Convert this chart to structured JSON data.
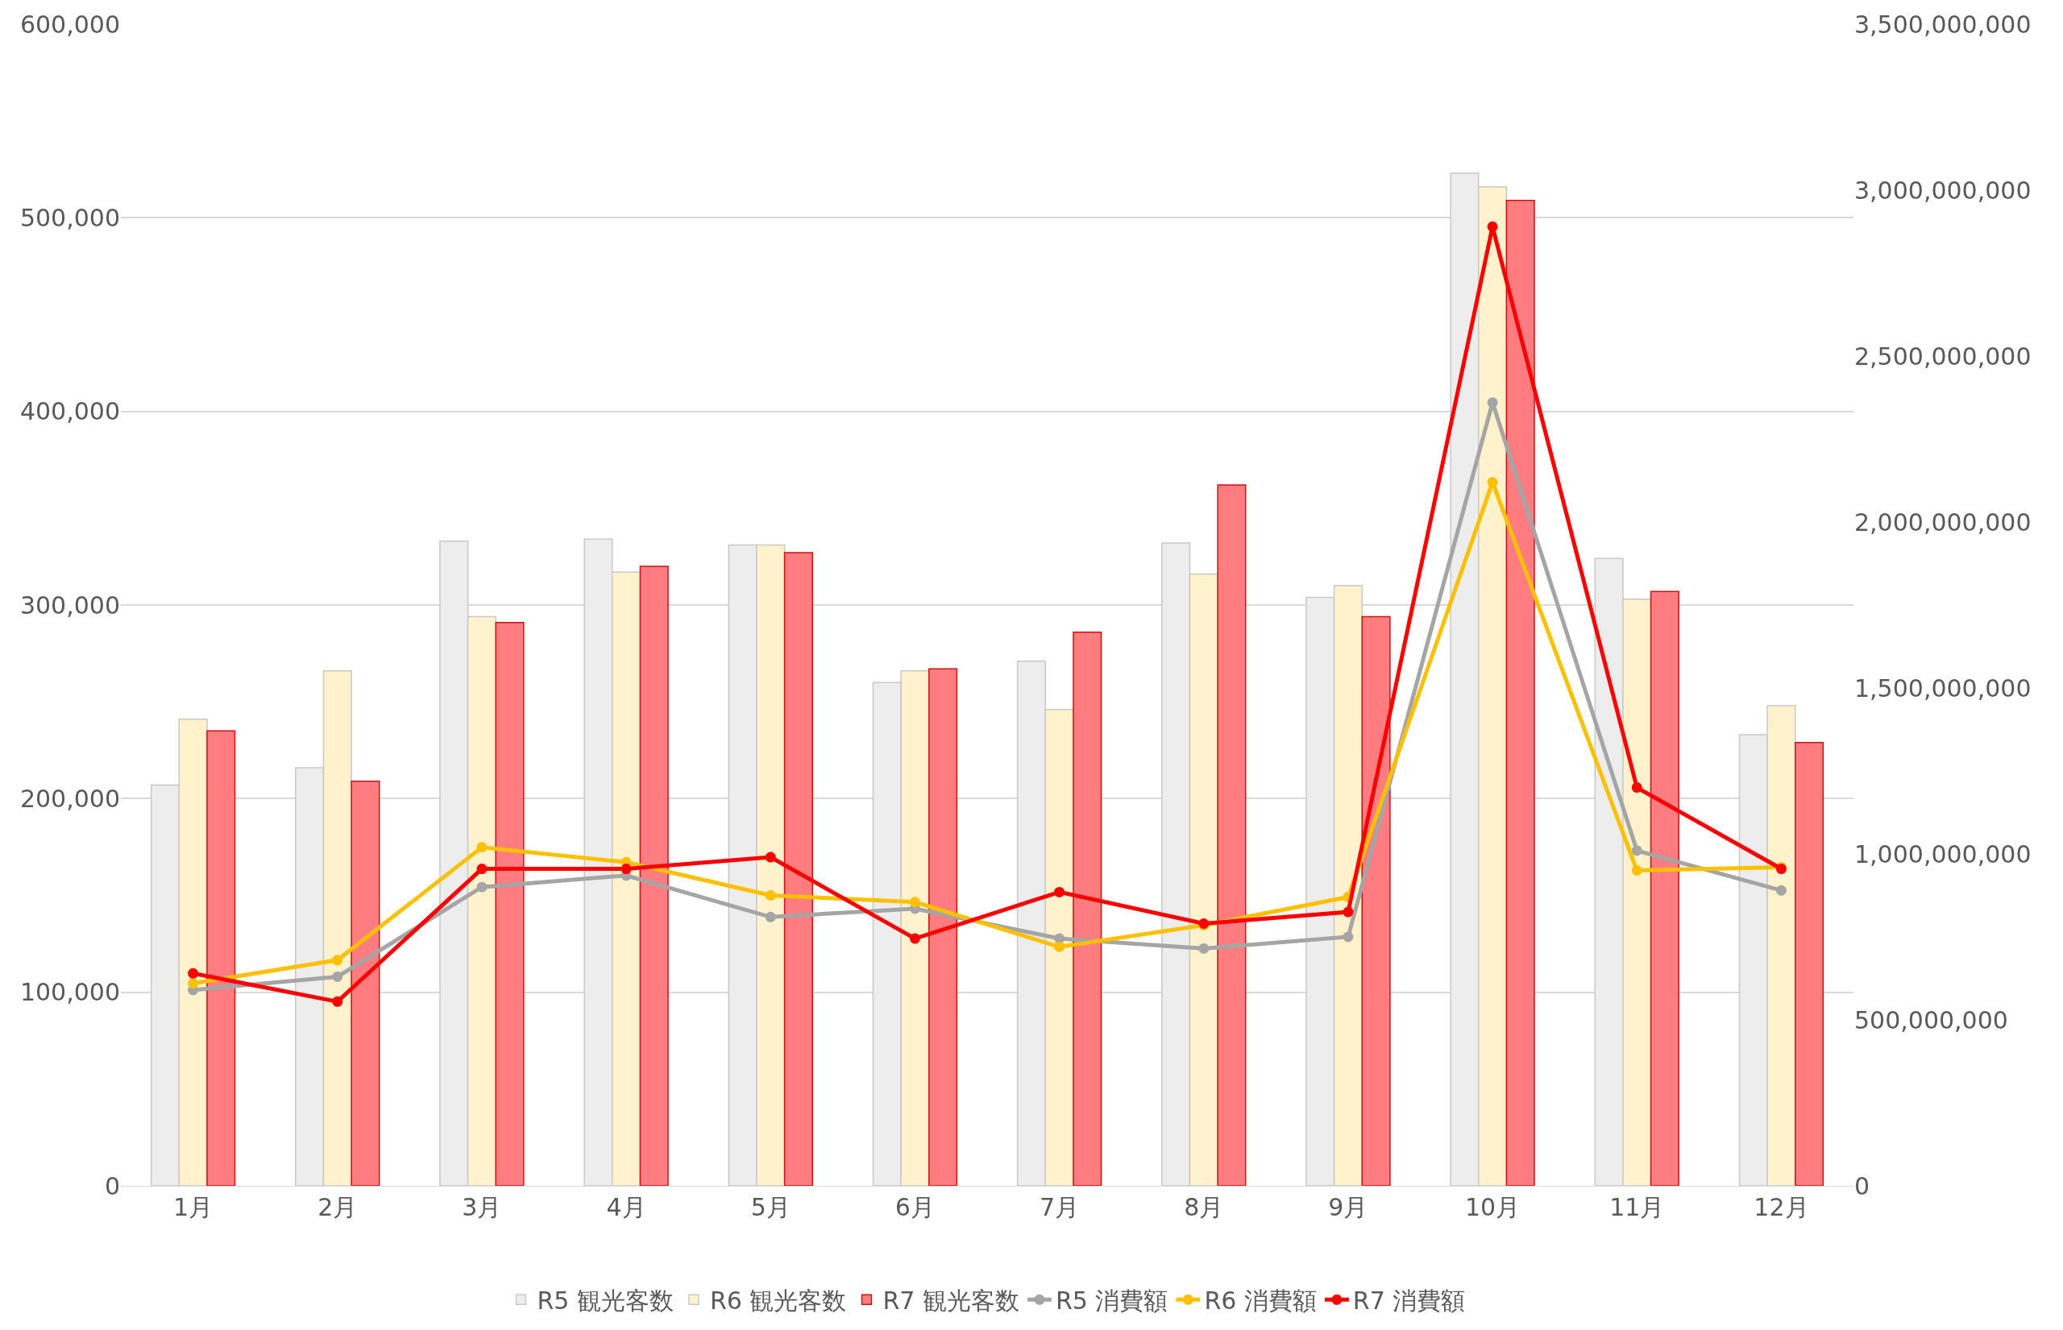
{
  "chart_data": {
    "type": "bar",
    "categories": [
      "1月",
      "2月",
      "3月",
      "4月",
      "5月",
      "6月",
      "7月",
      "8月",
      "9月",
      "10月",
      "11月",
      "12月"
    ],
    "series": [
      {
        "name": "R5 観光客数",
        "color": "#ededed",
        "values": [
          207000,
          216000,
          333000,
          334000,
          331000,
          260000,
          271000,
          332000,
          304000,
          523000,
          324000,
          233000
        ]
      },
      {
        "name": "R6 観光客数",
        "color": "#fff2cc",
        "values": [
          241000,
          266000,
          294000,
          317000,
          331000,
          266000,
          246000,
          316000,
          310000,
          516000,
          303000,
          248000
        ]
      },
      {
        "name": "R7 観光客数",
        "color": "#ff7c80",
        "values": [
          235000,
          209000,
          291000,
          320000,
          327000,
          267000,
          286000,
          362000,
          294000,
          509000,
          307000,
          229000
        ]
      },
      {
        "name": "R5 消費額",
        "type": "line",
        "axis": "y2",
        "color": "#a5a5a5",
        "values": [
          590000000,
          630000000,
          900000000,
          935000000,
          810000000,
          835000000,
          745000000,
          715000000,
          750000000,
          2360000000,
          1010000000,
          890000000
        ]
      },
      {
        "name": "R6 消費額",
        "type": "line",
        "axis": "y2",
        "color": "#ffc000",
        "values": [
          610000000,
          680000000,
          1020000000,
          975000000,
          875000000,
          855000000,
          720000000,
          785000000,
          870000000,
          2120000000,
          950000000,
          960000000
        ]
      },
      {
        "name": "R7 消費額",
        "type": "line",
        "axis": "y2",
        "color": "#ff0000",
        "values": [
          640000000,
          555000000,
          955000000,
          955000000,
          990000000,
          745000000,
          885000000,
          790000000,
          825000000,
          2890000000,
          1200000000,
          955000000
        ]
      }
    ],
    "ylim": [
      0,
      600000
    ],
    "yticks": [
      {
        "value": 0,
        "label": "0"
      },
      {
        "value": 100000,
        "label": "100,000"
      },
      {
        "value": 200000,
        "label": "200,000"
      },
      {
        "value": 300000,
        "label": "300,000"
      },
      {
        "value": 400000,
        "label": "400,000"
      },
      {
        "value": 500000,
        "label": "500,000"
      },
      {
        "value": 600000,
        "label": "600,000"
      }
    ],
    "y2lim": [
      0,
      3500000000
    ],
    "y2ticks": [
      {
        "value": 0,
        "label": "0"
      },
      {
        "value": 500000000,
        "label": "500,000,000"
      },
      {
        "value": 1000000000,
        "label": "1,000,000,000"
      },
      {
        "value": 1500000000,
        "label": "1,500,000,000"
      },
      {
        "value": 2000000000,
        "label": "2,000,000,000"
      },
      {
        "value": 2500000000,
        "label": "2,500,000,000"
      },
      {
        "value": 3000000000,
        "label": "3,000,000,000"
      },
      {
        "value": 3500000000,
        "label": "3,500,000,000"
      }
    ],
    "grid": "y",
    "legend": "bottom",
    "marker": "circle",
    "line_style": "solid"
  }
}
